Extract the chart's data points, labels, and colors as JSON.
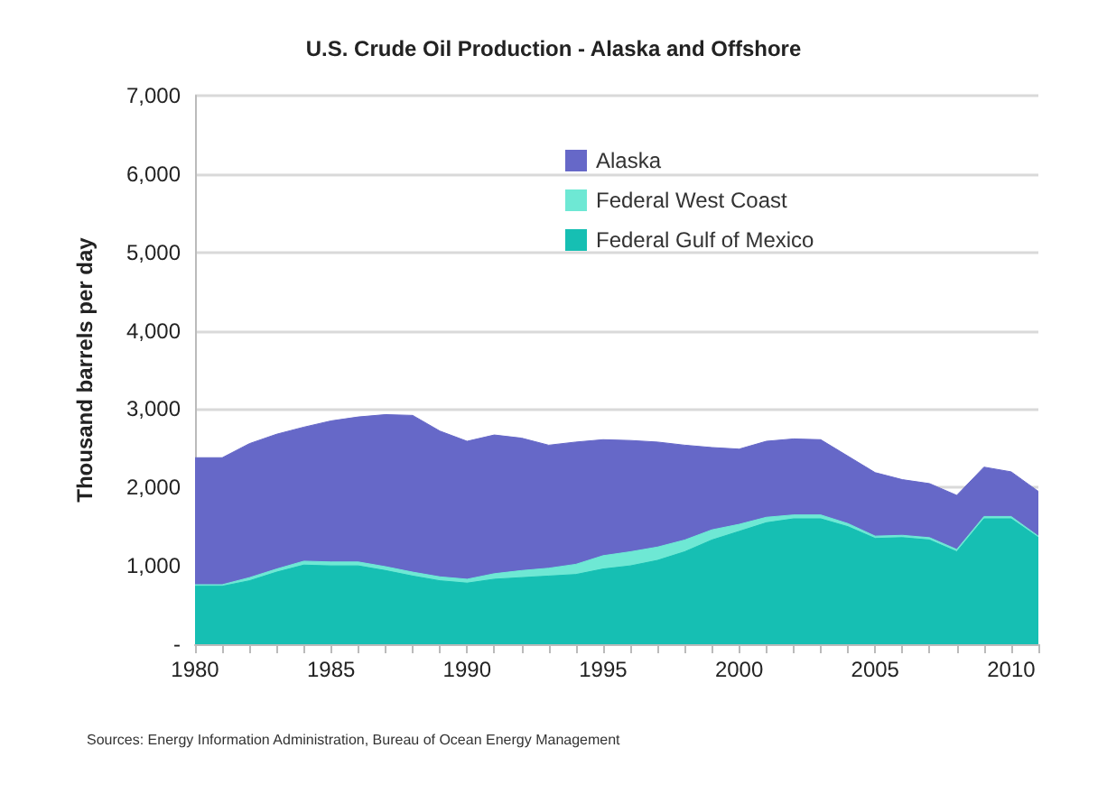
{
  "chart_data": {
    "type": "area",
    "title": "U.S. Crude Oil Production - Alaska and Offshore",
    "ylabel": "Thousand barrels per day",
    "stacked": true,
    "x": [
      1980,
      1981,
      1982,
      1983,
      1984,
      1985,
      1986,
      1987,
      1988,
      1989,
      1990,
      1991,
      1992,
      1993,
      1994,
      1995,
      1996,
      1997,
      1998,
      1999,
      2000,
      2001,
      2002,
      2003,
      2004,
      2005,
      2006,
      2007,
      2008,
      2009,
      2010,
      2011
    ],
    "series": [
      {
        "name": "Federal Gulf of Mexico",
        "color": "#16bfb3",
        "values": [
          740,
          740,
          810,
          920,
          1010,
          1000,
          1000,
          940,
          870,
          810,
          780,
          830,
          850,
          870,
          890,
          960,
          1000,
          1070,
          1180,
          1330,
          1440,
          1550,
          1600,
          1600,
          1500,
          1350,
          1360,
          1330,
          1180,
          1600,
          1600,
          1360
        ]
      },
      {
        "name": "Federal West Coast",
        "color": "#6ee8d4",
        "values": [
          20,
          20,
          40,
          40,
          50,
          50,
          50,
          50,
          50,
          50,
          50,
          70,
          90,
          100,
          130,
          170,
          180,
          170,
          150,
          130,
          90,
          70,
          50,
          50,
          40,
          30,
          30,
          30,
          30,
          30,
          30,
          20
        ]
      },
      {
        "name": "Alaska",
        "color": "#6668c8",
        "values": [
          1620,
          1620,
          1710,
          1720,
          1710,
          1800,
          1850,
          1940,
          2000,
          1860,
          1760,
          1770,
          1690,
          1570,
          1560,
          1480,
          1420,
          1340,
          1210,
          1050,
          960,
          970,
          970,
          960,
          860,
          810,
          710,
          690,
          690,
          630,
          570,
          570
        ]
      }
    ],
    "xlim": [
      1980,
      2011
    ],
    "xticks": [
      1980,
      1985,
      1990,
      1995,
      2000,
      2005,
      2010
    ],
    "ylim": [
      0,
      7000
    ],
    "yticks": [
      {
        "value": 0,
        "label": "-"
      },
      {
        "value": 1000,
        "label": "1,000"
      },
      {
        "value": 2000,
        "label": "2,000"
      },
      {
        "value": 3000,
        "label": "3,000"
      },
      {
        "value": 4000,
        "label": "4,000"
      },
      {
        "value": 5000,
        "label": "5,000"
      },
      {
        "value": 6000,
        "label": "6,000"
      },
      {
        "value": 7000,
        "label": "7,000"
      }
    ],
    "grid": "y",
    "legend": "top",
    "annotations": [
      "Sources: Energy Information Administration, Bureau of Ocean Energy Management"
    ]
  }
}
